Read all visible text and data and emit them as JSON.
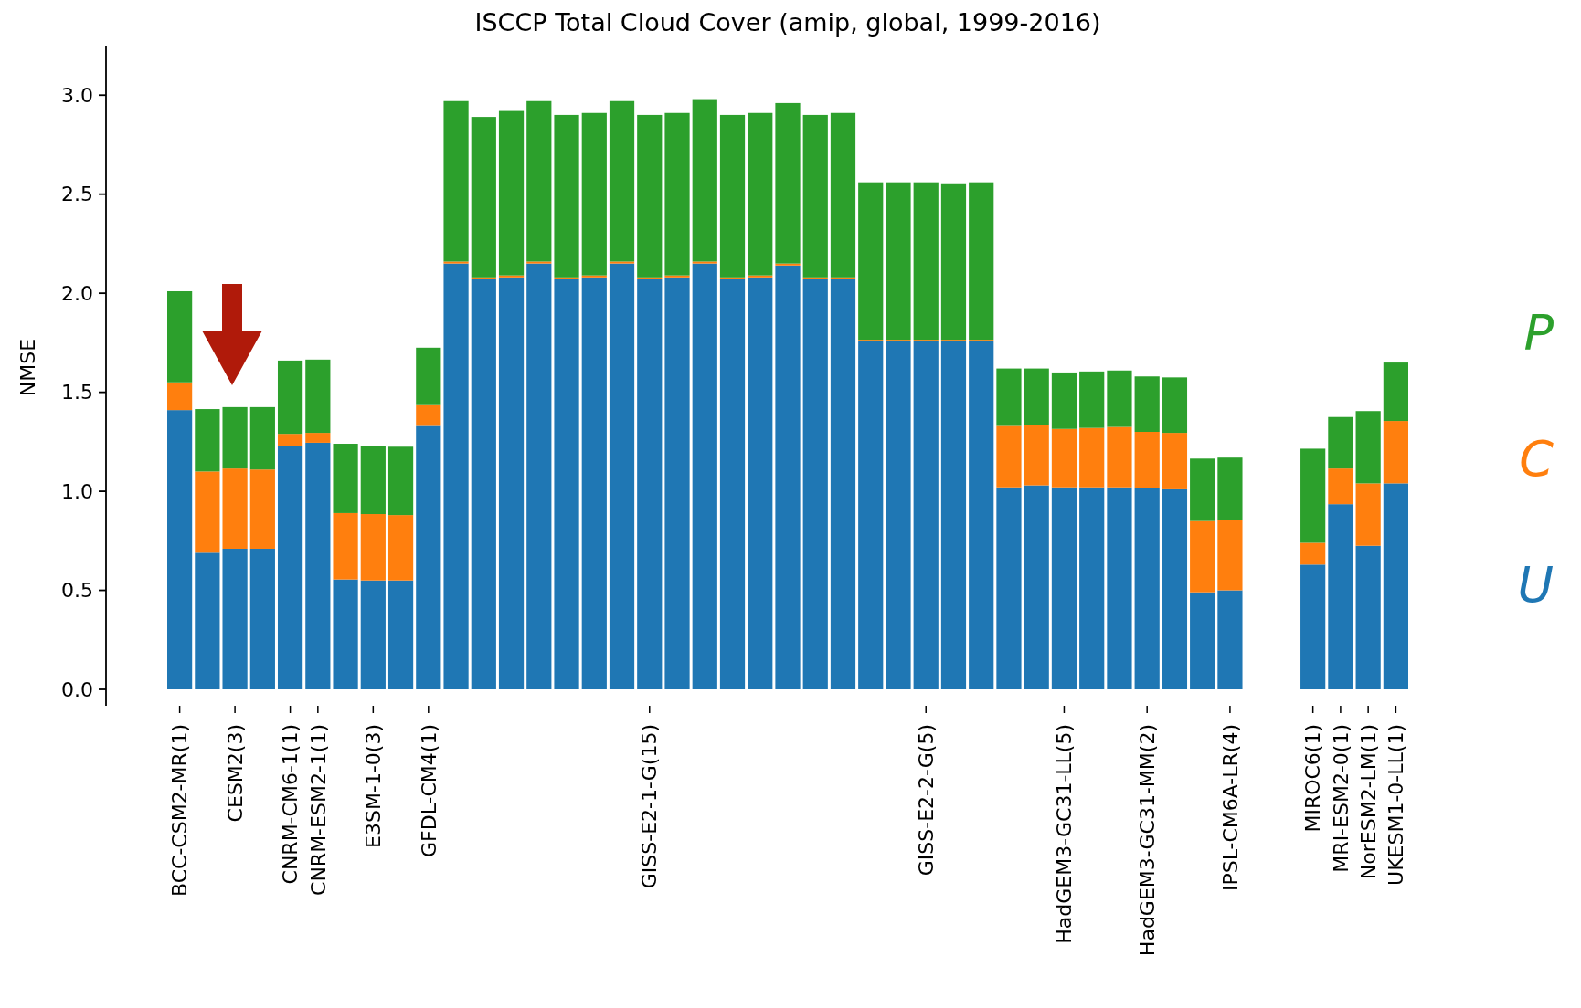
{
  "chart_data": {
    "type": "bar",
    "title": "ISCCP Total Cloud Cover (amip, global, 1999-2016)",
    "ylabel": "NMSE",
    "stacked": true,
    "legend": "right",
    "categories": [
      "BCC-CSM2-MR(1)",
      null,
      "CESM2(3)",
      null,
      "CNRM-CM6-1(1)",
      "CNRM-ESM2-1(1)",
      null,
      "E3SM-1-0(3)",
      null,
      "GFDL-CM4(1)",
      null,
      null,
      null,
      null,
      null,
      null,
      null,
      "GISS-E2-1-G(15)",
      null,
      null,
      null,
      null,
      null,
      null,
      null,
      null,
      null,
      "GISS-E2-2-G(5)",
      null,
      null,
      null,
      null,
      "HadGEM3-GC31-LL(5)",
      null,
      null,
      "HadGEM3-GC31-MM(2)",
      null,
      null,
      "IPSL-CM6A-LR(4)",
      null,
      null,
      "MIROC6(1)",
      "MRI-ESM2-0(1)",
      "NorESM2-LM(1)",
      "UKESM1-0-LL(1)"
    ],
    "series": [
      {
        "name": "U",
        "color": "#1f77b4",
        "values": [
          1.41,
          0.69,
          0.71,
          0.71,
          1.23,
          1.245,
          0.555,
          0.55,
          0.55,
          1.33,
          2.15,
          2.07,
          2.08,
          2.15,
          2.07,
          2.08,
          2.15,
          2.07,
          2.08,
          2.15,
          2.07,
          2.08,
          2.14,
          2.07,
          2.07,
          1.76,
          1.76,
          1.76,
          1.76,
          1.76,
          1.02,
          1.03,
          1.02,
          1.02,
          1.02,
          1.015,
          1.01,
          0.49,
          0.5,
          null,
          null,
          0.63,
          0.935,
          0.725,
          1.04
        ]
      },
      {
        "name": "C",
        "color": "#ff7f0e",
        "values": [
          0.14,
          0.41,
          0.405,
          0.4,
          0.06,
          0.05,
          0.335,
          0.335,
          0.33,
          0.105,
          0.01,
          0.01,
          0.01,
          0.01,
          0.01,
          0.01,
          0.01,
          0.01,
          0.01,
          0.01,
          0.01,
          0.01,
          0.01,
          0.01,
          0.01,
          0.005,
          0.005,
          0.005,
          0.005,
          0.005,
          0.31,
          0.305,
          0.295,
          0.3,
          0.305,
          0.285,
          0.285,
          0.36,
          0.355,
          null,
          null,
          0.11,
          0.18,
          0.315,
          0.315
        ]
      },
      {
        "name": "P",
        "color": "#2ca02c",
        "values": [
          0.46,
          0.315,
          0.31,
          0.315,
          0.37,
          0.37,
          0.35,
          0.345,
          0.345,
          0.29,
          0.81,
          0.81,
          0.83,
          0.81,
          0.82,
          0.82,
          0.81,
          0.82,
          0.82,
          0.82,
          0.82,
          0.82,
          0.81,
          0.82,
          0.83,
          0.795,
          0.795,
          0.795,
          0.79,
          0.795,
          0.29,
          0.285,
          0.285,
          0.285,
          0.285,
          0.28,
          0.28,
          0.315,
          0.315,
          null,
          null,
          0.475,
          0.26,
          0.365,
          0.295
        ]
      }
    ],
    "ylim": [
      0,
      3.25
    ],
    "yticks": [
      {
        "value": 0,
        "label": "0.0"
      },
      {
        "value": 0.5,
        "label": "0.5"
      },
      {
        "value": 1,
        "label": "1.0"
      },
      {
        "value": 1.5,
        "label": "1.5"
      },
      {
        "value": 2,
        "label": "2.0"
      },
      {
        "value": 2.5,
        "label": "2.5"
      },
      {
        "value": 3,
        "label": "3.0"
      }
    ]
  }
}
